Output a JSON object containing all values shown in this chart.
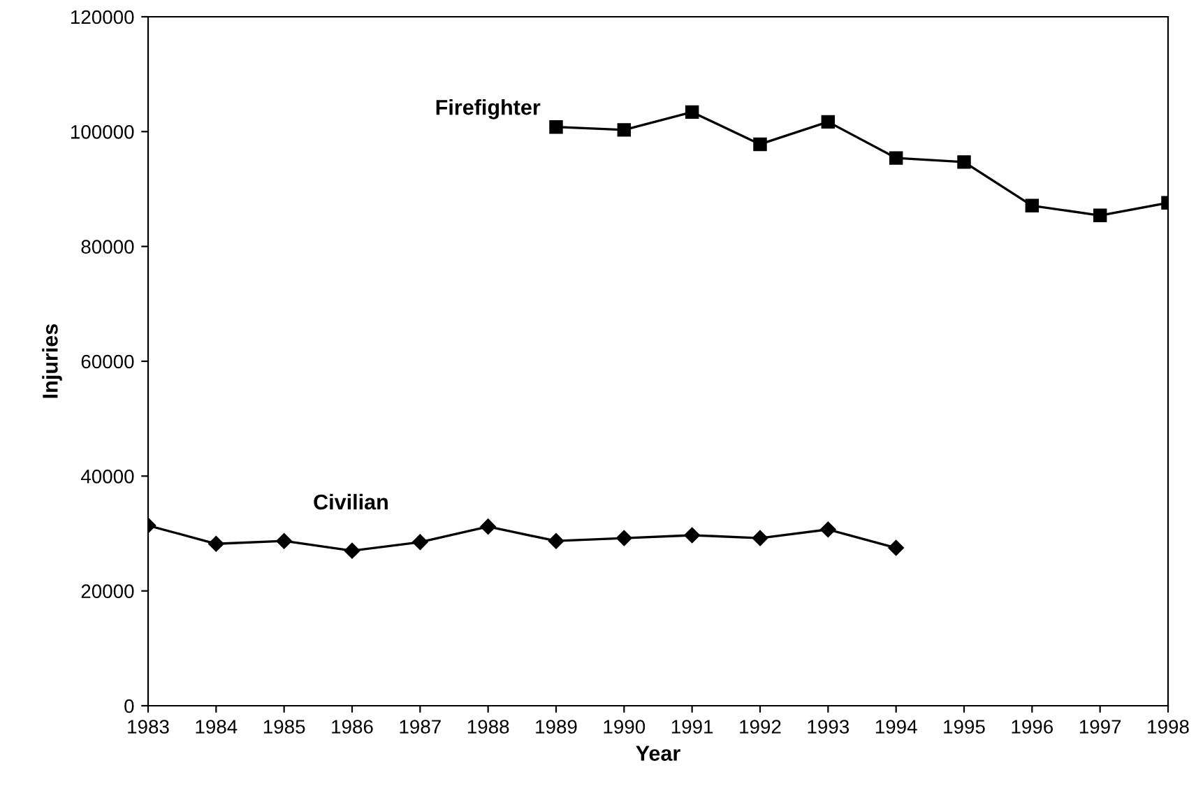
{
  "chart_data": {
    "type": "line",
    "xlabel": "Year",
    "ylabel": "Injuries",
    "x": [
      1983,
      1984,
      1985,
      1986,
      1987,
      1988,
      1989,
      1990,
      1991,
      1992,
      1993,
      1994,
      1995,
      1996,
      1997,
      1998
    ],
    "series": [
      {
        "name": "Firefighter",
        "color": "#000000",
        "marker": "square",
        "values": [
          null,
          null,
          null,
          null,
          null,
          null,
          100800,
          100300,
          103400,
          97800,
          101700,
          95400,
          94700,
          87100,
          85400,
          87600
        ]
      },
      {
        "name": "Civilian",
        "color": "#000000",
        "marker": "diamond",
        "values": [
          31400,
          28200,
          28700,
          27000,
          28500,
          31200,
          28700,
          29200,
          29700,
          29200,
          30700,
          27500,
          null,
          null,
          null,
          null
        ]
      }
    ],
    "xlim": [
      1983,
      1998
    ],
    "xticks": [
      1983,
      1984,
      1985,
      1986,
      1987,
      1988,
      1989,
      1990,
      1991,
      1992,
      1993,
      1994,
      1995,
      1996,
      1997,
      1998
    ],
    "ylim": [
      0,
      120000
    ],
    "yticks": [
      0,
      20000,
      40000,
      60000,
      80000,
      100000,
      120000
    ],
    "grid": false,
    "legend": false,
    "line_style": "solid"
  }
}
